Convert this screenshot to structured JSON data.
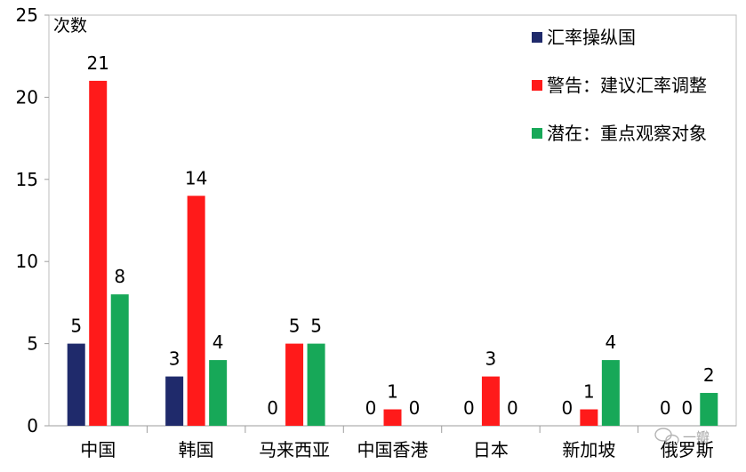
{
  "chart_data": {
    "type": "bar",
    "ylabel": "次数",
    "ylim": [
      0,
      25
    ],
    "yticks": [
      0,
      5,
      10,
      15,
      20,
      25
    ],
    "categories": [
      "中国",
      "韩国",
      "马来西亚",
      "中国香港",
      "日本",
      "新加坡",
      "俄罗斯"
    ],
    "series": [
      {
        "name": "汇率操纵国",
        "color": "#1f2a6b",
        "values": [
          5,
          3,
          0,
          0,
          0,
          0,
          0
        ]
      },
      {
        "name": "警告：建议汇率调整",
        "color": "#ff1a1a",
        "values": [
          21,
          14,
          5,
          1,
          3,
          1,
          0
        ]
      },
      {
        "name": "潜在：重点观察对象",
        "color": "#17a858",
        "values": [
          8,
          4,
          5,
          0,
          0,
          4,
          2
        ]
      }
    ],
    "legend_position": "top-right",
    "grid": false
  },
  "watermark": {
    "text": "一瓣",
    "icon": "wechat-logo"
  }
}
